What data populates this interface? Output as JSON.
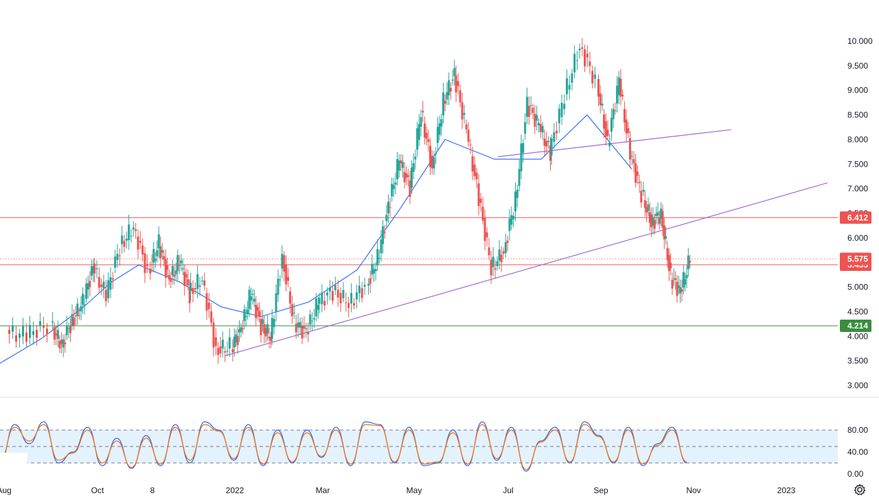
{
  "chart_data": [
    {
      "type": "candlestick",
      "title": "",
      "ylim": [
        2.75,
        10.35
      ],
      "y_ticks": [
        "10.000",
        "9.500",
        "9.000",
        "8.500",
        "8.000",
        "7.500",
        "7.000",
        "6.500",
        "6.000",
        "5.500",
        "5.000",
        "4.500",
        "4.000",
        "3.500",
        "3.000"
      ],
      "x_ticks": [
        "Aug",
        "Oct",
        "8",
        "2022",
        "Mar",
        "May",
        "Jul",
        "Sep",
        "Nov",
        "2023"
      ],
      "candle_up_color": "#26a69a",
      "candle_down_color": "#ef5350",
      "close_series": [
        {
          "x": "Aug 2021",
          "close": 4.05
        },
        {
          "x": "Aug 2021",
          "close": 4.2
        },
        {
          "x": "Sep 2021",
          "close": 3.85
        },
        {
          "x": "Sep 2021",
          "close": 4.3
        },
        {
          "x": "Sep 2021",
          "close": 4.7
        },
        {
          "x": "Sep 2021",
          "close": 5.4
        },
        {
          "x": "Oct 2021",
          "close": 4.85
        },
        {
          "x": "Oct 2021",
          "close": 5.8
        },
        {
          "x": "Oct 2021",
          "close": 6.25
        },
        {
          "x": "Oct 2021",
          "close": 5.3
        },
        {
          "x": "Nov 2021",
          "close": 5.9
        },
        {
          "x": "Nov 2021",
          "close": 5.1
        },
        {
          "x": "Nov 2021",
          "close": 5.55
        },
        {
          "x": "Nov 2021",
          "close": 4.85
        },
        {
          "x": "Dec 2021",
          "close": 5.2
        },
        {
          "x": "Dec 2021",
          "close": 3.7
        },
        {
          "x": "Dec 2021",
          "close": 3.8
        },
        {
          "x": "Jan 2022",
          "close": 4.1
        },
        {
          "x": "Jan 2022",
          "close": 4.9
        },
        {
          "x": "Jan 2022",
          "close": 4.2
        },
        {
          "x": "Jan 2022",
          "close": 4.0
        },
        {
          "x": "Feb 2022",
          "close": 5.6
        },
        {
          "x": "Feb 2022",
          "close": 4.3
        },
        {
          "x": "Feb 2022",
          "close": 4.05
        },
        {
          "x": "Feb 2022",
          "close": 4.7
        },
        {
          "x": "Mar 2022",
          "close": 4.9
        },
        {
          "x": "Mar 2022",
          "close": 4.7
        },
        {
          "x": "Mar 2022",
          "close": 5.0
        },
        {
          "x": "Apr 2022",
          "close": 5.6
        },
        {
          "x": "Apr 2022",
          "close": 6.6
        },
        {
          "x": "Apr 2022",
          "close": 7.6
        },
        {
          "x": "Apr 2022",
          "close": 7.0
        },
        {
          "x": "May 2022",
          "close": 8.6
        },
        {
          "x": "May 2022",
          "close": 7.4
        },
        {
          "x": "May 2022",
          "close": 8.8
        },
        {
          "x": "May 2022",
          "close": 9.3
        },
        {
          "x": "Jun 2022",
          "close": 8.2
        },
        {
          "x": "Jun 2022",
          "close": 6.8
        },
        {
          "x": "Jun 2022",
          "close": 5.4
        },
        {
          "x": "Jun 2022",
          "close": 5.7
        },
        {
          "x": "Jul 2022",
          "close": 6.8
        },
        {
          "x": "Jul 2022",
          "close": 8.7
        },
        {
          "x": "Jul 2022",
          "close": 8.3
        },
        {
          "x": "Jul 2022",
          "close": 7.7
        },
        {
          "x": "Aug 2022",
          "close": 8.9
        },
        {
          "x": "Aug 2022",
          "close": 9.9
        },
        {
          "x": "Aug 2022",
          "close": 9.2
        },
        {
          "x": "Sep 2022",
          "close": 7.9
        },
        {
          "x": "Sep 2022",
          "close": 9.2
        },
        {
          "x": "Sep 2022",
          "close": 7.7
        },
        {
          "x": "Sep 2022",
          "close": 6.9
        },
        {
          "x": "Oct 2022",
          "close": 6.3
        },
        {
          "x": "Oct 2022",
          "close": 6.5
        },
        {
          "x": "Oct 2022",
          "close": 5.2
        },
        {
          "x": "Oct 2022",
          "close": 4.9
        },
        {
          "x": "Oct 2022",
          "close": 5.575
        }
      ],
      "moving_average": {
        "color": "#2962ff",
        "values": [
          {
            "x": "Aug 2021",
            "y": 3.45
          },
          {
            "x": "Sep 2021",
            "y": 3.95
          },
          {
            "x": "Oct 2021",
            "y": 4.6
          },
          {
            "x": "Oct 2021",
            "y": 5.1
          },
          {
            "x": "Nov 2021",
            "y": 5.45
          },
          {
            "x": "Dec 2021",
            "y": 5.1
          },
          {
            "x": "Jan 2022",
            "y": 4.6
          },
          {
            "x": "Feb 2022",
            "y": 4.4
          },
          {
            "x": "Mar 2022",
            "y": 4.7
          },
          {
            "x": "Apr 2022",
            "y": 5.35
          },
          {
            "x": "May 2022",
            "y": 6.6
          },
          {
            "x": "Jun 2022",
            "y": 8.0
          },
          {
            "x": "Jul 2022",
            "y": 7.6
          },
          {
            "x": "Aug 2022",
            "y": 7.6
          },
          {
            "x": "Sep 2022",
            "y": 8.5
          },
          {
            "x": "Oct 2022",
            "y": 7.4
          }
        ]
      },
      "horizontal_levels": [
        {
          "value": 6.412,
          "label": "6.412",
          "color": "#ef5350"
        },
        {
          "value": 5.455,
          "label": "5.455",
          "color": "#ef5350"
        },
        {
          "value": 4.214,
          "label": "4.214",
          "color": "#388e3c"
        }
      ],
      "last_price": {
        "value": 5.575,
        "label": "5.575",
        "color": "#ef5350"
      },
      "trendlines": [
        {
          "color": "#9c6ade",
          "from": {
            "x": "Jan 2022",
            "y": 3.6
          },
          "to": {
            "x": "Dec 2022",
            "y": 7.12
          }
        },
        {
          "color": "#9c6ade",
          "from": {
            "x": "Jul 2022",
            "y": 7.65
          },
          "to": {
            "x": "Oct 2022",
            "y": 8.2
          }
        }
      ]
    },
    {
      "type": "line",
      "indicator": "stochastic",
      "ylim": [
        0,
        100
      ],
      "y_ticks": [
        "80.00",
        "40.00",
        "0.00"
      ],
      "band": {
        "upper": 80,
        "middle": 50,
        "lower": 20,
        "fill": "#e3f2fd"
      },
      "series": [
        {
          "color": "#2962ff",
          "values": [
            20,
            90,
            55,
            95,
            20,
            40,
            85,
            15,
            65,
            10,
            70,
            15,
            90,
            20,
            95,
            80,
            25,
            90,
            15,
            80,
            20,
            80,
            30,
            85,
            15,
            95,
            90,
            20,
            85,
            15,
            20,
            80,
            15,
            95,
            25,
            85,
            5,
            60,
            85,
            20,
            95,
            70,
            20,
            85,
            15,
            55,
            85,
            20
          ]
        },
        {
          "color": "#ff6d00",
          "values": [
            25,
            85,
            60,
            90,
            25,
            38,
            80,
            20,
            60,
            12,
            65,
            18,
            85,
            25,
            90,
            78,
            28,
            85,
            18,
            75,
            22,
            75,
            32,
            80,
            18,
            90,
            88,
            22,
            80,
            18,
            22,
            75,
            18,
            90,
            28,
            80,
            8,
            58,
            80,
            22,
            90,
            68,
            22,
            80,
            18,
            52,
            80,
            22
          ]
        }
      ]
    }
  ],
  "ui": {
    "settings_icon": "gear-icon"
  }
}
